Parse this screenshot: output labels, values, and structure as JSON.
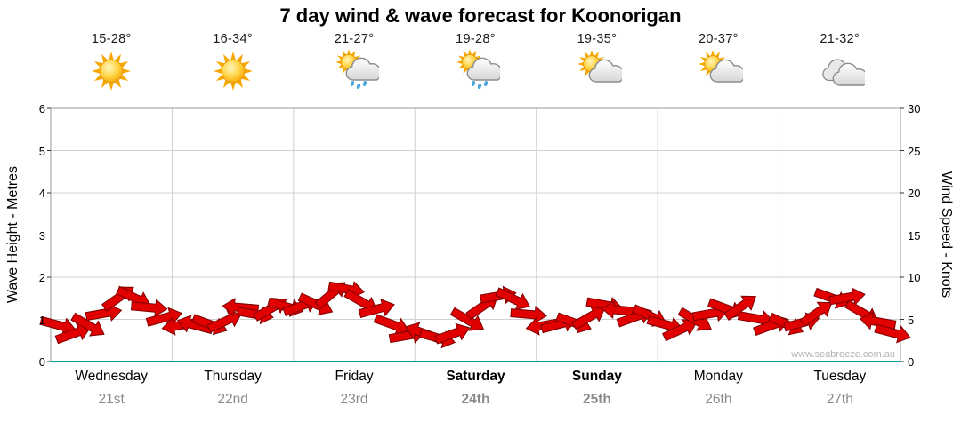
{
  "watermark": "www.seabreeze.com.au",
  "colors": {
    "arrow_fill": "#e00000",
    "arrow_outline": "#7d0000",
    "baseline_teal": "#00a0a0",
    "gridline": "#d0d0d0"
  },
  "days": [
    {
      "name": "Wednesday",
      "date": "21st",
      "temp": "15-28°",
      "icon": "sunny-icon",
      "bold": false
    },
    {
      "name": "Thursday",
      "date": "22nd",
      "temp": "16-34°",
      "icon": "sunny-icon",
      "bold": false
    },
    {
      "name": "Friday",
      "date": "23rd",
      "temp": "21-27°",
      "icon": "sun-shower-icon",
      "bold": false
    },
    {
      "name": "Saturday",
      "date": "24th",
      "temp": "19-28°",
      "icon": "sun-shower-icon",
      "bold": true
    },
    {
      "name": "Sunday",
      "date": "25th",
      "temp": "19-35°",
      "icon": "partly-cloudy-icon",
      "bold": true
    },
    {
      "name": "Monday",
      "date": "26th",
      "temp": "20-37°",
      "icon": "partly-cloudy-icon",
      "bold": false
    },
    {
      "name": "Tuesday",
      "date": "27th",
      "temp": "21-32°",
      "icon": "cloudy-icon",
      "bold": false
    }
  ],
  "chart_data": {
    "type": "line",
    "title": "7 day wind & wave forecast for Koonorigan",
    "x_categories": [
      "Wednesday 21st",
      "Thursday 22nd",
      "Friday 23rd",
      "Saturday 24th",
      "Sunday 25th",
      "Monday 26th",
      "Tuesday 27th"
    ],
    "points_per_day": 8,
    "grid": true,
    "left_axis": {
      "label": "Wave Height - Metres",
      "range": [
        0,
        6
      ],
      "ticks": [
        0,
        1,
        2,
        3,
        4,
        5,
        6
      ]
    },
    "right_axis": {
      "label": "Wind Speed - Knots",
      "range": [
        0,
        30
      ],
      "ticks": [
        0,
        5,
        10,
        15,
        20,
        25,
        30
      ]
    },
    "series": [
      {
        "name": "Wind Speed",
        "units": "knots",
        "marker": "wind-arrow",
        "color": "#e00000",
        "values": [
          4.0,
          3.3,
          4.6,
          5.4,
          7.6,
          7.9,
          6.1,
          5.2,
          4.6,
          4.0,
          4.4,
          5.1,
          6.1,
          5.6,
          6.6,
          6.2,
          6.6,
          7.1,
          7.7,
          8.6,
          7.4,
          5.9,
          4.4,
          3.4,
          3.1,
          2.8,
          3.6,
          4.6,
          6.6,
          8.1,
          7.1,
          5.6,
          4.6,
          4.1,
          4.6,
          5.6,
          6.4,
          6.1,
          5.6,
          5.1,
          4.4,
          4.1,
          4.6,
          5.7,
          6.6,
          6.2,
          5.1,
          4.6,
          4.1,
          4.6,
          6.1,
          7.2,
          7.6,
          6.1,
          4.4,
          3.4
        ],
        "directions_deg": [
          15,
          -20,
          30,
          -10,
          -35,
          25,
          5,
          -15,
          170,
          195,
          20,
          -25,
          185,
          10,
          -30,
          15,
          -20,
          25,
          -40,
          10,
          30,
          -15,
          20,
          -10,
          200,
          15,
          -20,
          30,
          -35,
          -10,
          25,
          5,
          170,
          -15,
          20,
          -30,
          10,
          185,
          -20,
          25,
          15,
          -25,
          30,
          -10,
          20,
          -35,
          10,
          -20,
          25,
          -15,
          -35,
          20,
          -10,
          30,
          190,
          15
        ]
      }
    ]
  }
}
